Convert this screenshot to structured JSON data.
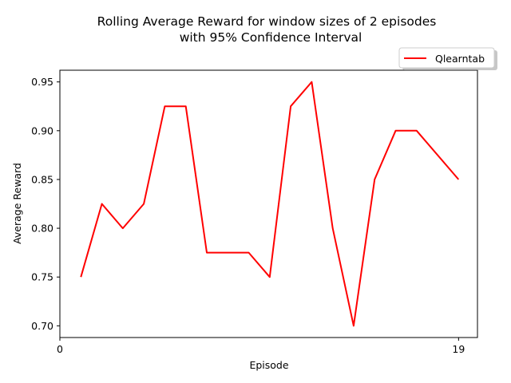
{
  "chart_data": {
    "type": "line",
    "title": "Rolling Average Reward for window sizes of 2 episodes",
    "subtitle": "with 95% Confidence Interval",
    "xlabel": "Episode",
    "ylabel": "Average Reward",
    "xlim": [
      0,
      19.9
    ],
    "ylim": [
      0.688,
      0.962
    ],
    "x_ticks": [
      0,
      19
    ],
    "x_tick_labels": [
      "0",
      "19"
    ],
    "y_ticks": [
      0.7,
      0.75,
      0.8,
      0.85,
      0.9,
      0.95
    ],
    "y_tick_labels": [
      "0.70",
      "0.75",
      "0.80",
      "0.85",
      "0.90",
      "0.95"
    ],
    "grid": false,
    "legend_position": "upper-right-outside",
    "series": [
      {
        "name": "Qlearntab",
        "color": "#ff0000",
        "x": [
          1,
          2,
          3,
          4,
          5,
          6,
          7,
          8,
          9,
          10,
          11,
          12,
          13,
          14,
          15,
          16,
          17,
          19
        ],
        "y": [
          0.75,
          0.825,
          0.8,
          0.825,
          0.925,
          0.925,
          0.775,
          0.775,
          0.775,
          0.75,
          0.925,
          0.95,
          0.8,
          0.7,
          0.85,
          0.9,
          0.9,
          0.85
        ]
      }
    ]
  }
}
